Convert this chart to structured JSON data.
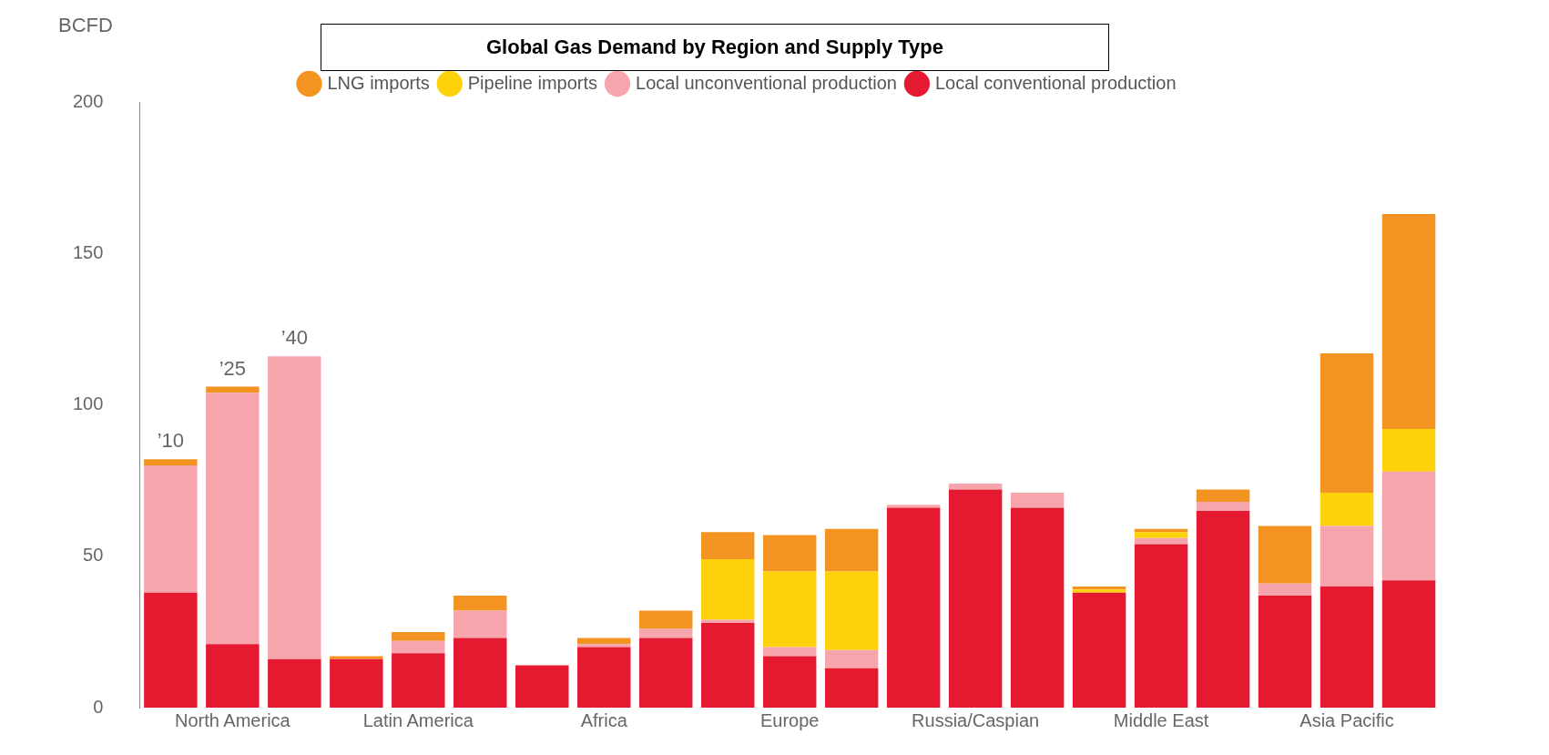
{
  "chart_data": {
    "type": "bar",
    "title": "Global Gas Demand  by Region and Supply Type",
    "ylabel": "BCFD",
    "categories": [
      null,
      "North America",
      null,
      null,
      "Latin America",
      null,
      null,
      "Africa",
      null,
      null,
      "Europe",
      null,
      null,
      "Russia/Caspian",
      null,
      null,
      "Middle East",
      null,
      null,
      "Asia Pacific",
      null
    ],
    "stacked": true,
    "legend": "top",
    "grid": false,
    "ylim": [
      0,
      200
    ],
    "yticks": [
      0,
      50,
      100,
      150,
      200
    ],
    "series": [
      {
        "name": "Local conventional production",
        "color": "#e51a31",
        "values": [
          38,
          21,
          16,
          16,
          18,
          23,
          14,
          20,
          23,
          28,
          17,
          13,
          66,
          72,
          66,
          38,
          54,
          65,
          37,
          40,
          42
        ]
      },
      {
        "name": "Local unconventional production",
        "color": "#f6a5ad",
        "values": [
          42,
          83,
          100,
          0,
          4,
          9,
          0,
          1,
          3,
          1,
          3,
          6,
          1,
          2,
          5,
          0,
          2,
          3,
          4,
          20,
          36
        ]
      },
      {
        "name": "Pipeline imports",
        "color": "#fdd20a",
        "values": [
          0,
          0,
          0,
          0,
          0,
          0,
          0,
          0,
          0,
          20,
          25,
          26,
          0,
          0,
          0,
          1,
          2,
          0,
          0,
          11,
          14
        ]
      },
      {
        "name": "LNG imports",
        "color": "#f39322",
        "values": [
          2,
          2,
          0,
          1,
          3,
          5,
          0,
          2,
          6,
          9,
          12,
          14,
          0,
          0,
          0,
          1,
          1,
          4,
          19,
          46,
          71
        ]
      }
    ],
    "annotations": [
      {
        "text": "’10",
        "y": 82
      },
      {
        "text": "’25",
        "y": 106
      },
      {
        "text": "’40",
        "y": 116
      }
    ]
  }
}
